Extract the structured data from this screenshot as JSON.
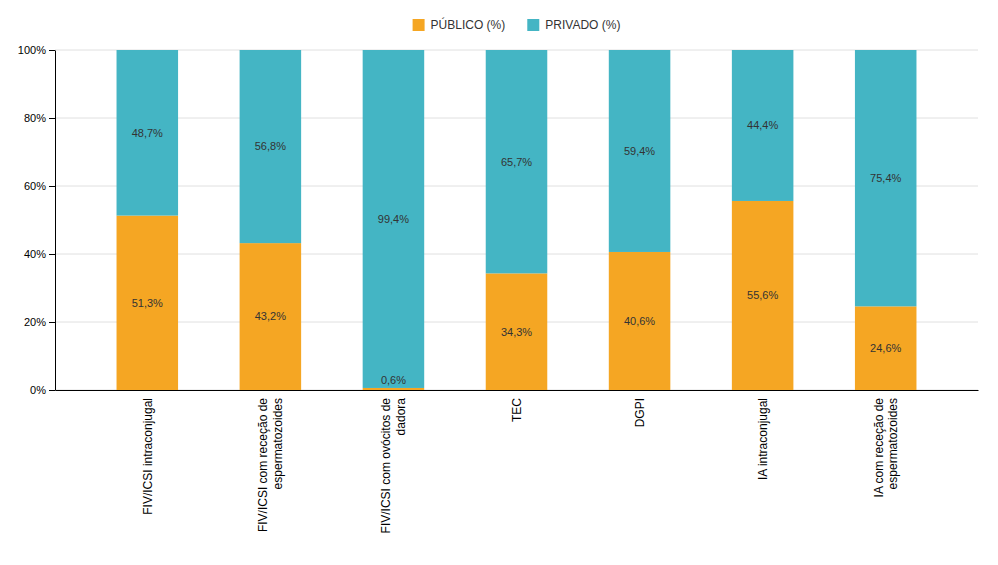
{
  "chart_data": {
    "type": "bar",
    "stacked": true,
    "categories": [
      "FIV/ICSI intraconjugal",
      "FIV/ICSI com receção de\nespermatozoides",
      "FIV/ICSI com ovócitos de\ndadora",
      "TEC",
      "DGPI",
      "IA intraconjugal",
      "IA com receção de\nespermatozoides"
    ],
    "series": [
      {
        "name": "PÚBLICO (%)",
        "color": "#F5A623",
        "values": [
          51.3,
          43.2,
          0.6,
          34.3,
          40.6,
          55.6,
          24.6
        ],
        "value_labels": [
          "51,3%",
          "43,2%",
          "0,6%",
          "34,3%",
          "40,6%",
          "55,6%",
          "24,6%"
        ]
      },
      {
        "name": "PRIVADO (%)",
        "color": "#44B5C4",
        "values": [
          48.7,
          56.8,
          99.4,
          65.7,
          59.4,
          44.4,
          75.4
        ],
        "value_labels": [
          "48,7%",
          "56,8%",
          "99,4%",
          "65,7%",
          "59,4%",
          "44,4%",
          "75,4%"
        ]
      }
    ],
    "ylim": [
      0,
      100
    ],
    "yticks": [
      {
        "value": 0,
        "label": "0%"
      },
      {
        "value": 20,
        "label": "20%"
      },
      {
        "value": 40,
        "label": "40%"
      },
      {
        "value": 60,
        "label": "60%"
      },
      {
        "value": 80,
        "label": "80%"
      },
      {
        "value": 100,
        "label": "100%"
      }
    ],
    "grid": true,
    "legend": "top",
    "data_labels": true
  }
}
